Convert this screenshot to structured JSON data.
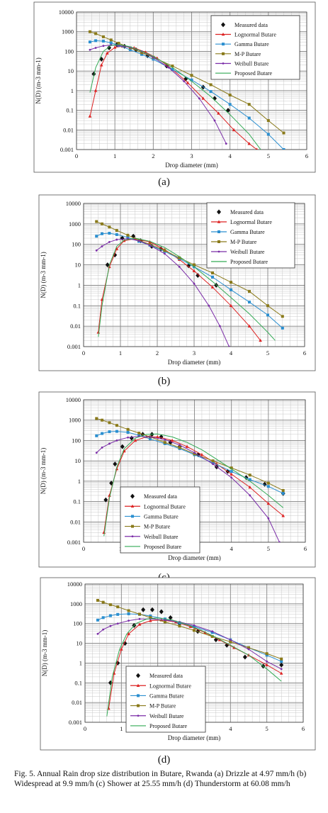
{
  "caption": "Fig. 5.  Annual Rain drop size distribution in Butare, Rwanda (a) Drizzle at 4.97 mm/h (b) Widespread at 9.9 mm/h (c) Shower at 25.55 mm/h (d) Thunderstorm at 60.08 mm/h",
  "colors": {
    "measured": "#111111",
    "lognormal": "#dd2222",
    "gamma": "#2b8fd0",
    "mp": "#8a7a1a",
    "weibull": "#7b2da8",
    "proposed": "#33aa55"
  },
  "chart_data": [
    {
      "type": "line",
      "panel_label": "(a)",
      "xlabel": "Drop diameter (mm)",
      "ylabel": "N(D) (m-3 mm-1)",
      "xlim": [
        0,
        6
      ],
      "ylim": [
        0.001,
        10000
      ],
      "yscale": "log",
      "xticks": [
        "0",
        "1",
        "2",
        "3",
        "4",
        "5",
        "6"
      ],
      "yticks": [
        "0.001",
        "0.01",
        "0.1",
        "1",
        "10",
        "100",
        "1000",
        "10000"
      ],
      "grid": true,
      "legend_position": "top-right",
      "series": [
        {
          "name": "Measured data",
          "key": "measured",
          "x": [
            0.45,
            0.65,
            0.85,
            1.05,
            1.25,
            1.55,
            1.85,
            2.35,
            2.85,
            3.3,
            3.6,
            3.95
          ],
          "y": [
            7,
            40,
            150,
            220,
            180,
            120,
            60,
            18,
            4,
            1.5,
            0.4,
            0.1
          ]
        },
        {
          "name": "Lognormal Butare",
          "key": "lognormal",
          "x": [
            0.35,
            0.5,
            0.65,
            0.8,
            1.0,
            1.2,
            1.5,
            1.8,
            2.1,
            2.5,
            2.9,
            3.3,
            3.7,
            4.1,
            4.5,
            4.7
          ],
          "y": [
            0.05,
            1,
            20,
            80,
            160,
            180,
            150,
            90,
            45,
            12,
            2.5,
            0.4,
            0.07,
            0.01,
            0.002,
            0.001
          ]
        },
        {
          "name": "Gamma Butare",
          "key": "gamma",
          "x": [
            0.35,
            0.5,
            0.7,
            0.9,
            1.1,
            1.4,
            1.7,
            2.0,
            2.5,
            3.0,
            3.5,
            4.0,
            4.5,
            5.0,
            5.4
          ],
          "y": [
            300,
            350,
            330,
            270,
            200,
            120,
            70,
            40,
            12,
            3.5,
            0.9,
            0.2,
            0.04,
            0.006,
            0.001
          ]
        },
        {
          "name": "M-P Butare",
          "key": "mp",
          "x": [
            0.35,
            0.5,
            0.7,
            0.9,
            1.1,
            1.4,
            1.7,
            2.0,
            2.5,
            3.0,
            3.5,
            4.0,
            4.5,
            5.0,
            5.4
          ],
          "y": [
            1000,
            800,
            550,
            380,
            260,
            150,
            85,
            50,
            18,
            6,
            2,
            0.6,
            0.2,
            0.03,
            0.007
          ]
        },
        {
          "name": "Weibull Butare",
          "key": "weibull",
          "x": [
            0.35,
            0.5,
            0.7,
            0.9,
            1.1,
            1.4,
            1.7,
            2.0,
            2.4,
            2.8,
            3.2,
            3.6,
            3.9
          ],
          "y": [
            120,
            150,
            190,
            210,
            200,
            160,
            100,
            50,
            15,
            3,
            0.4,
            0.03,
            0.002
          ]
        },
        {
          "name": "Proposed Butare",
          "key": "proposed",
          "x": [
            0.35,
            0.5,
            0.7,
            0.9,
            1.1,
            1.4,
            1.7,
            2.0,
            2.5,
            3.0,
            3.5,
            4.0,
            4.5,
            4.8
          ],
          "y": [
            0.8,
            15,
            100,
            200,
            220,
            170,
            100,
            55,
            15,
            3,
            0.5,
            0.06,
            0.006,
            0.001
          ]
        }
      ]
    },
    {
      "type": "line",
      "panel_label": "(b)",
      "xlabel": "Drop diameter (mm)",
      "ylabel": "N(D) (m-3 mm-1)",
      "xlim": [
        0,
        6
      ],
      "ylim": [
        0.001,
        10000
      ],
      "yscale": "log",
      "xticks": [
        "0",
        "1",
        "2",
        "3",
        "4",
        "5",
        "6"
      ],
      "yticks": [
        "0.001",
        "0.01",
        "0.1",
        "1",
        "10",
        "100",
        "1000",
        "10000"
      ],
      "grid": true,
      "legend_position": "top-right",
      "series": [
        {
          "name": "Measured data",
          "key": "measured",
          "x": [
            0.65,
            0.85,
            1.05,
            1.35,
            1.55,
            1.85,
            2.1,
            2.6,
            2.85,
            3.1,
            3.6
          ],
          "y": [
            10,
            30,
            200,
            250,
            150,
            80,
            60,
            20,
            9,
            3,
            1
          ]
        },
        {
          "name": "Lognormal Butare",
          "key": "lognormal",
          "x": [
            0.4,
            0.5,
            0.7,
            0.9,
            1.1,
            1.4,
            1.8,
            2.2,
            2.6,
            3.0,
            3.5,
            4.0,
            4.5,
            4.8
          ],
          "y": [
            0.005,
            0.2,
            8,
            60,
            150,
            190,
            130,
            55,
            18,
            5,
            0.8,
            0.1,
            0.01,
            0.002
          ]
        },
        {
          "name": "Gamma Butare",
          "key": "gamma",
          "x": [
            0.35,
            0.5,
            0.7,
            0.9,
            1.2,
            1.5,
            1.8,
            2.2,
            2.6,
            3.0,
            3.5,
            4.0,
            4.5,
            5.0,
            5.4
          ],
          "y": [
            250,
            330,
            350,
            300,
            220,
            140,
            90,
            45,
            20,
            8,
            2.5,
            0.6,
            0.15,
            0.035,
            0.008
          ]
        },
        {
          "name": "M-P Butare",
          "key": "mp",
          "x": [
            0.35,
            0.5,
            0.7,
            0.9,
            1.2,
            1.5,
            1.8,
            2.2,
            2.6,
            3.0,
            3.5,
            4.0,
            4.5,
            5.0,
            5.4
          ],
          "y": [
            1300,
            1000,
            700,
            480,
            280,
            160,
            100,
            50,
            22,
            10,
            4,
            1.4,
            0.5,
            0.1,
            0.03
          ]
        },
        {
          "name": "Weibull Butare",
          "key": "weibull",
          "x": [
            0.35,
            0.5,
            0.7,
            0.9,
            1.2,
            1.5,
            1.8,
            2.2,
            2.6,
            3.0,
            3.4,
            3.7,
            3.95
          ],
          "y": [
            50,
            80,
            130,
            170,
            190,
            150,
            90,
            35,
            8,
            1.2,
            0.1,
            0.01,
            0.001
          ]
        },
        {
          "name": "Proposed Butare",
          "key": "proposed",
          "x": [
            0.4,
            0.5,
            0.7,
            0.9,
            1.1,
            1.4,
            1.8,
            2.2,
            2.6,
            3.0,
            3.5,
            4.0,
            4.5,
            5.0,
            5.2
          ],
          "y": [
            0.003,
            0.1,
            10,
            80,
            160,
            200,
            140,
            70,
            25,
            8,
            1.5,
            0.25,
            0.04,
            0.005,
            0.002
          ]
        }
      ]
    },
    {
      "type": "line",
      "panel_label": "(c)",
      "xlabel": "Drop diameter (mm)",
      "ylabel": "N(D) (m-3 mm-1)",
      "xlim": [
        0,
        6
      ],
      "ylim": [
        0.001,
        10000
      ],
      "yscale": "log",
      "xticks": [
        "0",
        "1",
        "2",
        "3",
        "4",
        "5",
        "6"
      ],
      "yticks": [
        "0.001",
        "0.01",
        "0.1",
        "1",
        "10",
        "100",
        "1000",
        "10000"
      ],
      "grid": true,
      "legend_position": "bottom-left",
      "series": [
        {
          "name": "Measured data",
          "key": "measured",
          "x": [
            0.6,
            0.75,
            0.85,
            1.05,
            1.3,
            1.6,
            1.85,
            2.1,
            2.35,
            2.6,
            3.1,
            3.6,
            3.9,
            4.4,
            4.9,
            5.4
          ],
          "y": [
            0.12,
            0.8,
            7,
            50,
            130,
            200,
            200,
            150,
            80,
            50,
            20,
            5,
            3,
            1.5,
            0.7,
            0.25
          ]
        },
        {
          "name": "Lognormal Butare",
          "key": "lognormal",
          "x": [
            0.55,
            0.7,
            0.9,
            1.1,
            1.4,
            1.7,
            2.0,
            2.4,
            2.8,
            3.2,
            3.6,
            4.0,
            4.5,
            5.0,
            5.4
          ],
          "y": [
            0.003,
            0.2,
            4,
            30,
            100,
            150,
            150,
            100,
            50,
            20,
            7,
            2.2,
            0.5,
            0.08,
            0.02
          ]
        },
        {
          "name": "Gamma Butare",
          "key": "gamma",
          "x": [
            0.35,
            0.5,
            0.7,
            0.9,
            1.2,
            1.5,
            1.8,
            2.2,
            2.6,
            3.0,
            3.5,
            4.0,
            4.5,
            5.0,
            5.4
          ],
          "y": [
            170,
            220,
            270,
            280,
            250,
            180,
            120,
            70,
            40,
            20,
            8,
            3,
            1.2,
            0.55,
            0.25
          ]
        },
        {
          "name": "M-P Butare",
          "key": "mp",
          "x": [
            0.35,
            0.5,
            0.7,
            0.9,
            1.2,
            1.5,
            1.8,
            2.2,
            2.6,
            3.0,
            3.5,
            4.0,
            4.5,
            5.0,
            5.4
          ],
          "y": [
            1200,
            1000,
            750,
            550,
            350,
            230,
            150,
            80,
            45,
            22,
            10,
            4.5,
            2,
            0.8,
            0.35
          ]
        },
        {
          "name": "Weibull Butare",
          "key": "weibull",
          "x": [
            0.35,
            0.5,
            0.7,
            0.9,
            1.2,
            1.5,
            1.8,
            2.2,
            2.6,
            3.0,
            3.5,
            4.0,
            4.5,
            5.0,
            5.3
          ],
          "y": [
            25,
            45,
            70,
            100,
            140,
            160,
            150,
            110,
            60,
            25,
            7,
            1.5,
            0.2,
            0.015,
            0.001
          ]
        },
        {
          "name": "Proposed Butare",
          "key": "proposed",
          "x": [
            0.55,
            0.7,
            0.9,
            1.1,
            1.4,
            1.7,
            2.0,
            2.4,
            2.8,
            3.2,
            3.6,
            4.0,
            4.5,
            5.0,
            5.4
          ],
          "y": [
            0.002,
            0.15,
            5,
            40,
            130,
            200,
            210,
            150,
            80,
            35,
            12,
            4,
            1,
            0.2,
            0.05
          ]
        }
      ]
    },
    {
      "type": "line",
      "panel_label": "(d)",
      "xlabel": "Drop diameter (mm)",
      "ylabel": "N(D) (m-3 mm-1)",
      "xlim": [
        0,
        6
      ],
      "ylim": [
        0.001,
        10000
      ],
      "yscale": "log",
      "xticks": [
        "0",
        "1",
        "2",
        "3",
        "4",
        "5",
        "6"
      ],
      "yticks": [
        "0.001",
        "0.01",
        "0.1",
        "1",
        "10",
        "100",
        "1000",
        "10000"
      ],
      "grid": true,
      "legend_position": "bottom-left",
      "series": [
        {
          "name": "Measured data",
          "key": "measured",
          "x": [
            0.7,
            0.9,
            1.1,
            1.35,
            1.6,
            1.85,
            2.1,
            2.35,
            2.6,
            3.1,
            3.6,
            3.9,
            4.4,
            4.9,
            5.4
          ],
          "y": [
            0.1,
            1,
            10,
            80,
            500,
            500,
            400,
            200,
            100,
            40,
            15,
            8,
            2,
            0.7,
            0.8
          ]
        },
        {
          "name": "Lognormal Butare",
          "key": "lognormal",
          "x": [
            0.65,
            0.8,
            1.0,
            1.2,
            1.5,
            1.8,
            2.1,
            2.5,
            2.9,
            3.3,
            3.7,
            4.1,
            4.5,
            5.0,
            5.4
          ],
          "y": [
            0.005,
            0.3,
            5,
            30,
            90,
            140,
            150,
            120,
            70,
            35,
            15,
            6,
            2.5,
            0.8,
            0.3
          ]
        },
        {
          "name": "Gamma Butare",
          "key": "gamma",
          "x": [
            0.35,
            0.5,
            0.7,
            0.9,
            1.2,
            1.5,
            1.8,
            2.2,
            2.6,
            3.0,
            3.5,
            4.0,
            4.5,
            5.0,
            5.4
          ],
          "y": [
            150,
            200,
            250,
            290,
            310,
            290,
            240,
            170,
            110,
            70,
            35,
            15,
            6,
            2.5,
            1.2
          ]
        },
        {
          "name": "M-P Butare",
          "key": "mp",
          "x": [
            0.35,
            0.5,
            0.7,
            0.9,
            1.2,
            1.5,
            1.8,
            2.2,
            2.6,
            3.0,
            3.5,
            4.0,
            4.5,
            5.0,
            5.4
          ],
          "y": [
            1500,
            1200,
            900,
            700,
            450,
            300,
            200,
            120,
            75,
            45,
            22,
            12,
            6,
            3,
            1.6
          ]
        },
        {
          "name": "Weibull Butare",
          "key": "weibull",
          "x": [
            0.35,
            0.5,
            0.7,
            0.9,
            1.2,
            1.5,
            1.8,
            2.2,
            2.6,
            3.0,
            3.5,
            4.0,
            4.5,
            5.0,
            5.4
          ],
          "y": [
            30,
            50,
            75,
            100,
            140,
            170,
            170,
            150,
            120,
            80,
            40,
            15,
            5,
            1.2,
            0.5
          ]
        },
        {
          "name": "Proposed Butare",
          "key": "proposed",
          "x": [
            0.6,
            0.75,
            0.95,
            1.15,
            1.4,
            1.7,
            2.0,
            2.4,
            2.8,
            3.2,
            3.6,
            4.0,
            4.5,
            5.0,
            5.4
          ],
          "y": [
            0.002,
            0.2,
            5,
            30,
            100,
            170,
            190,
            150,
            90,
            45,
            20,
            8,
            2.5,
            0.5,
            0.12
          ]
        }
      ]
    }
  ]
}
